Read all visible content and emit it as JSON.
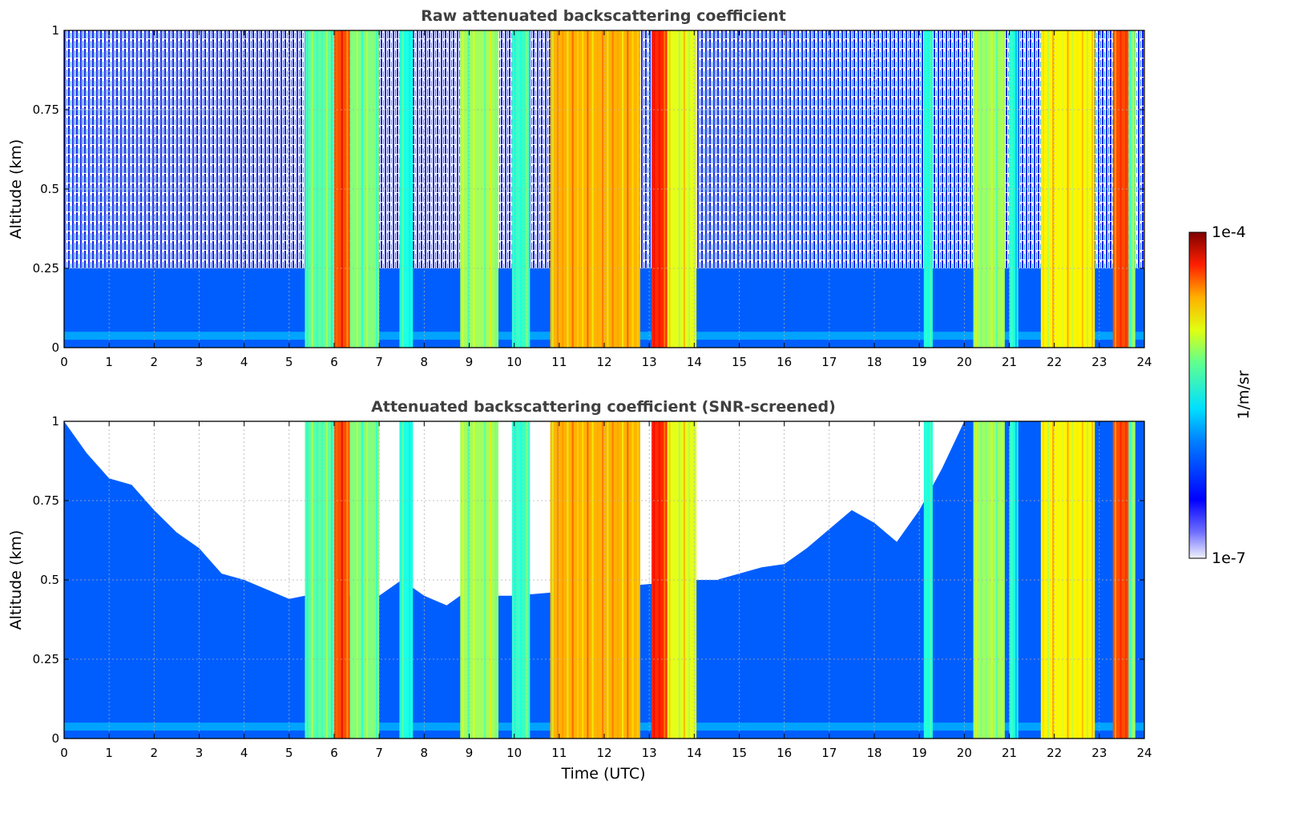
{
  "chart_data": [
    {
      "type": "heatmap",
      "title": "Raw attenuated backscattering coefficient",
      "xlabel": "",
      "ylabel": "Altitude (km)",
      "xlim": [
        0,
        24
      ],
      "ylim": [
        0,
        1
      ],
      "x_ticks": [
        "0",
        "1",
        "2",
        "3",
        "4",
        "5",
        "6",
        "7",
        "8",
        "9",
        "10",
        "11",
        "12",
        "13",
        "14",
        "15",
        "16",
        "17",
        "18",
        "19",
        "20",
        "21",
        "22",
        "23",
        "24"
      ],
      "y_ticks": [
        "0",
        "0.25",
        "0.5",
        "0.75",
        "1"
      ],
      "grid": true,
      "color_scale": "log10",
      "noise_above_km": 0.25,
      "cloud_columns": [
        {
          "start": 5.35,
          "end": 6.0,
          "log10_value": -5.6
        },
        {
          "start": 6.0,
          "end": 6.35,
          "log10_value": -4.6
        },
        {
          "start": 6.35,
          "end": 7.0,
          "log10_value": -5.5
        },
        {
          "start": 7.45,
          "end": 7.75,
          "log10_value": -5.8
        },
        {
          "start": 8.8,
          "end": 9.65,
          "log10_value": -5.4
        },
        {
          "start": 9.95,
          "end": 10.35,
          "log10_value": -5.7
        },
        {
          "start": 10.8,
          "end": 12.8,
          "log10_value": -4.9
        },
        {
          "start": 13.05,
          "end": 13.4,
          "log10_value": -4.5
        },
        {
          "start": 13.4,
          "end": 14.05,
          "log10_value": -5.2
        },
        {
          "start": 19.1,
          "end": 19.3,
          "log10_value": -5.8
        },
        {
          "start": 20.2,
          "end": 20.9,
          "log10_value": -5.4
        },
        {
          "start": 21.0,
          "end": 21.2,
          "log10_value": -5.8
        },
        {
          "start": 21.7,
          "end": 22.9,
          "log10_value": -5.1
        },
        {
          "start": 23.3,
          "end": 23.65,
          "log10_value": -4.6
        },
        {
          "start": 23.65,
          "end": 23.8,
          "log10_value": -5.5
        }
      ]
    },
    {
      "type": "heatmap",
      "title": "Attenuated backscattering coefficient (SNR-screened)",
      "xlabel": "Time (UTC)",
      "ylabel": "Altitude (km)",
      "xlim": [
        0,
        24
      ],
      "ylim": [
        0,
        1
      ],
      "x_ticks": [
        "0",
        "1",
        "2",
        "3",
        "4",
        "5",
        "6",
        "7",
        "8",
        "9",
        "10",
        "11",
        "12",
        "13",
        "14",
        "15",
        "16",
        "17",
        "18",
        "19",
        "20",
        "21",
        "22",
        "23",
        "24"
      ],
      "y_ticks": [
        "0",
        "0.25",
        "0.5",
        "0.75",
        "1"
      ],
      "grid": true,
      "color_scale": "log10",
      "screened_top_km": [
        {
          "x": 0.0,
          "y": 1.0
        },
        {
          "x": 0.5,
          "y": 0.9
        },
        {
          "x": 1.0,
          "y": 0.82
        },
        {
          "x": 1.5,
          "y": 0.8
        },
        {
          "x": 2.0,
          "y": 0.72
        },
        {
          "x": 2.5,
          "y": 0.65
        },
        {
          "x": 3.0,
          "y": 0.6
        },
        {
          "x": 3.5,
          "y": 0.52
        },
        {
          "x": 4.0,
          "y": 0.5
        },
        {
          "x": 4.5,
          "y": 0.47
        },
        {
          "x": 5.0,
          "y": 0.44
        },
        {
          "x": 5.35,
          "y": 0.45
        },
        {
          "x": 7.0,
          "y": 0.45
        },
        {
          "x": 7.5,
          "y": 0.5
        },
        {
          "x": 8.0,
          "y": 0.45
        },
        {
          "x": 8.5,
          "y": 0.42
        },
        {
          "x": 8.8,
          "y": 0.45
        },
        {
          "x": 9.65,
          "y": 0.45
        },
        {
          "x": 10.0,
          "y": 0.45
        },
        {
          "x": 14.05,
          "y": 0.5
        },
        {
          "x": 14.5,
          "y": 0.5
        },
        {
          "x": 15.0,
          "y": 0.52
        },
        {
          "x": 15.5,
          "y": 0.54
        },
        {
          "x": 16.0,
          "y": 0.55
        },
        {
          "x": 16.5,
          "y": 0.6
        },
        {
          "x": 17.0,
          "y": 0.66
        },
        {
          "x": 17.5,
          "y": 0.72
        },
        {
          "x": 18.0,
          "y": 0.68
        },
        {
          "x": 18.5,
          "y": 0.62
        },
        {
          "x": 19.0,
          "y": 0.72
        },
        {
          "x": 19.5,
          "y": 0.85
        },
        {
          "x": 20.0,
          "y": 1.0
        },
        {
          "x": 24.0,
          "y": 1.0
        }
      ]
    }
  ],
  "colorbar": {
    "label": "1/m/sr",
    "max_label": "1e-4",
    "min_label": "1e-7",
    "vmin_log10": -7,
    "vmax_log10": -4,
    "colormap": "jet"
  }
}
